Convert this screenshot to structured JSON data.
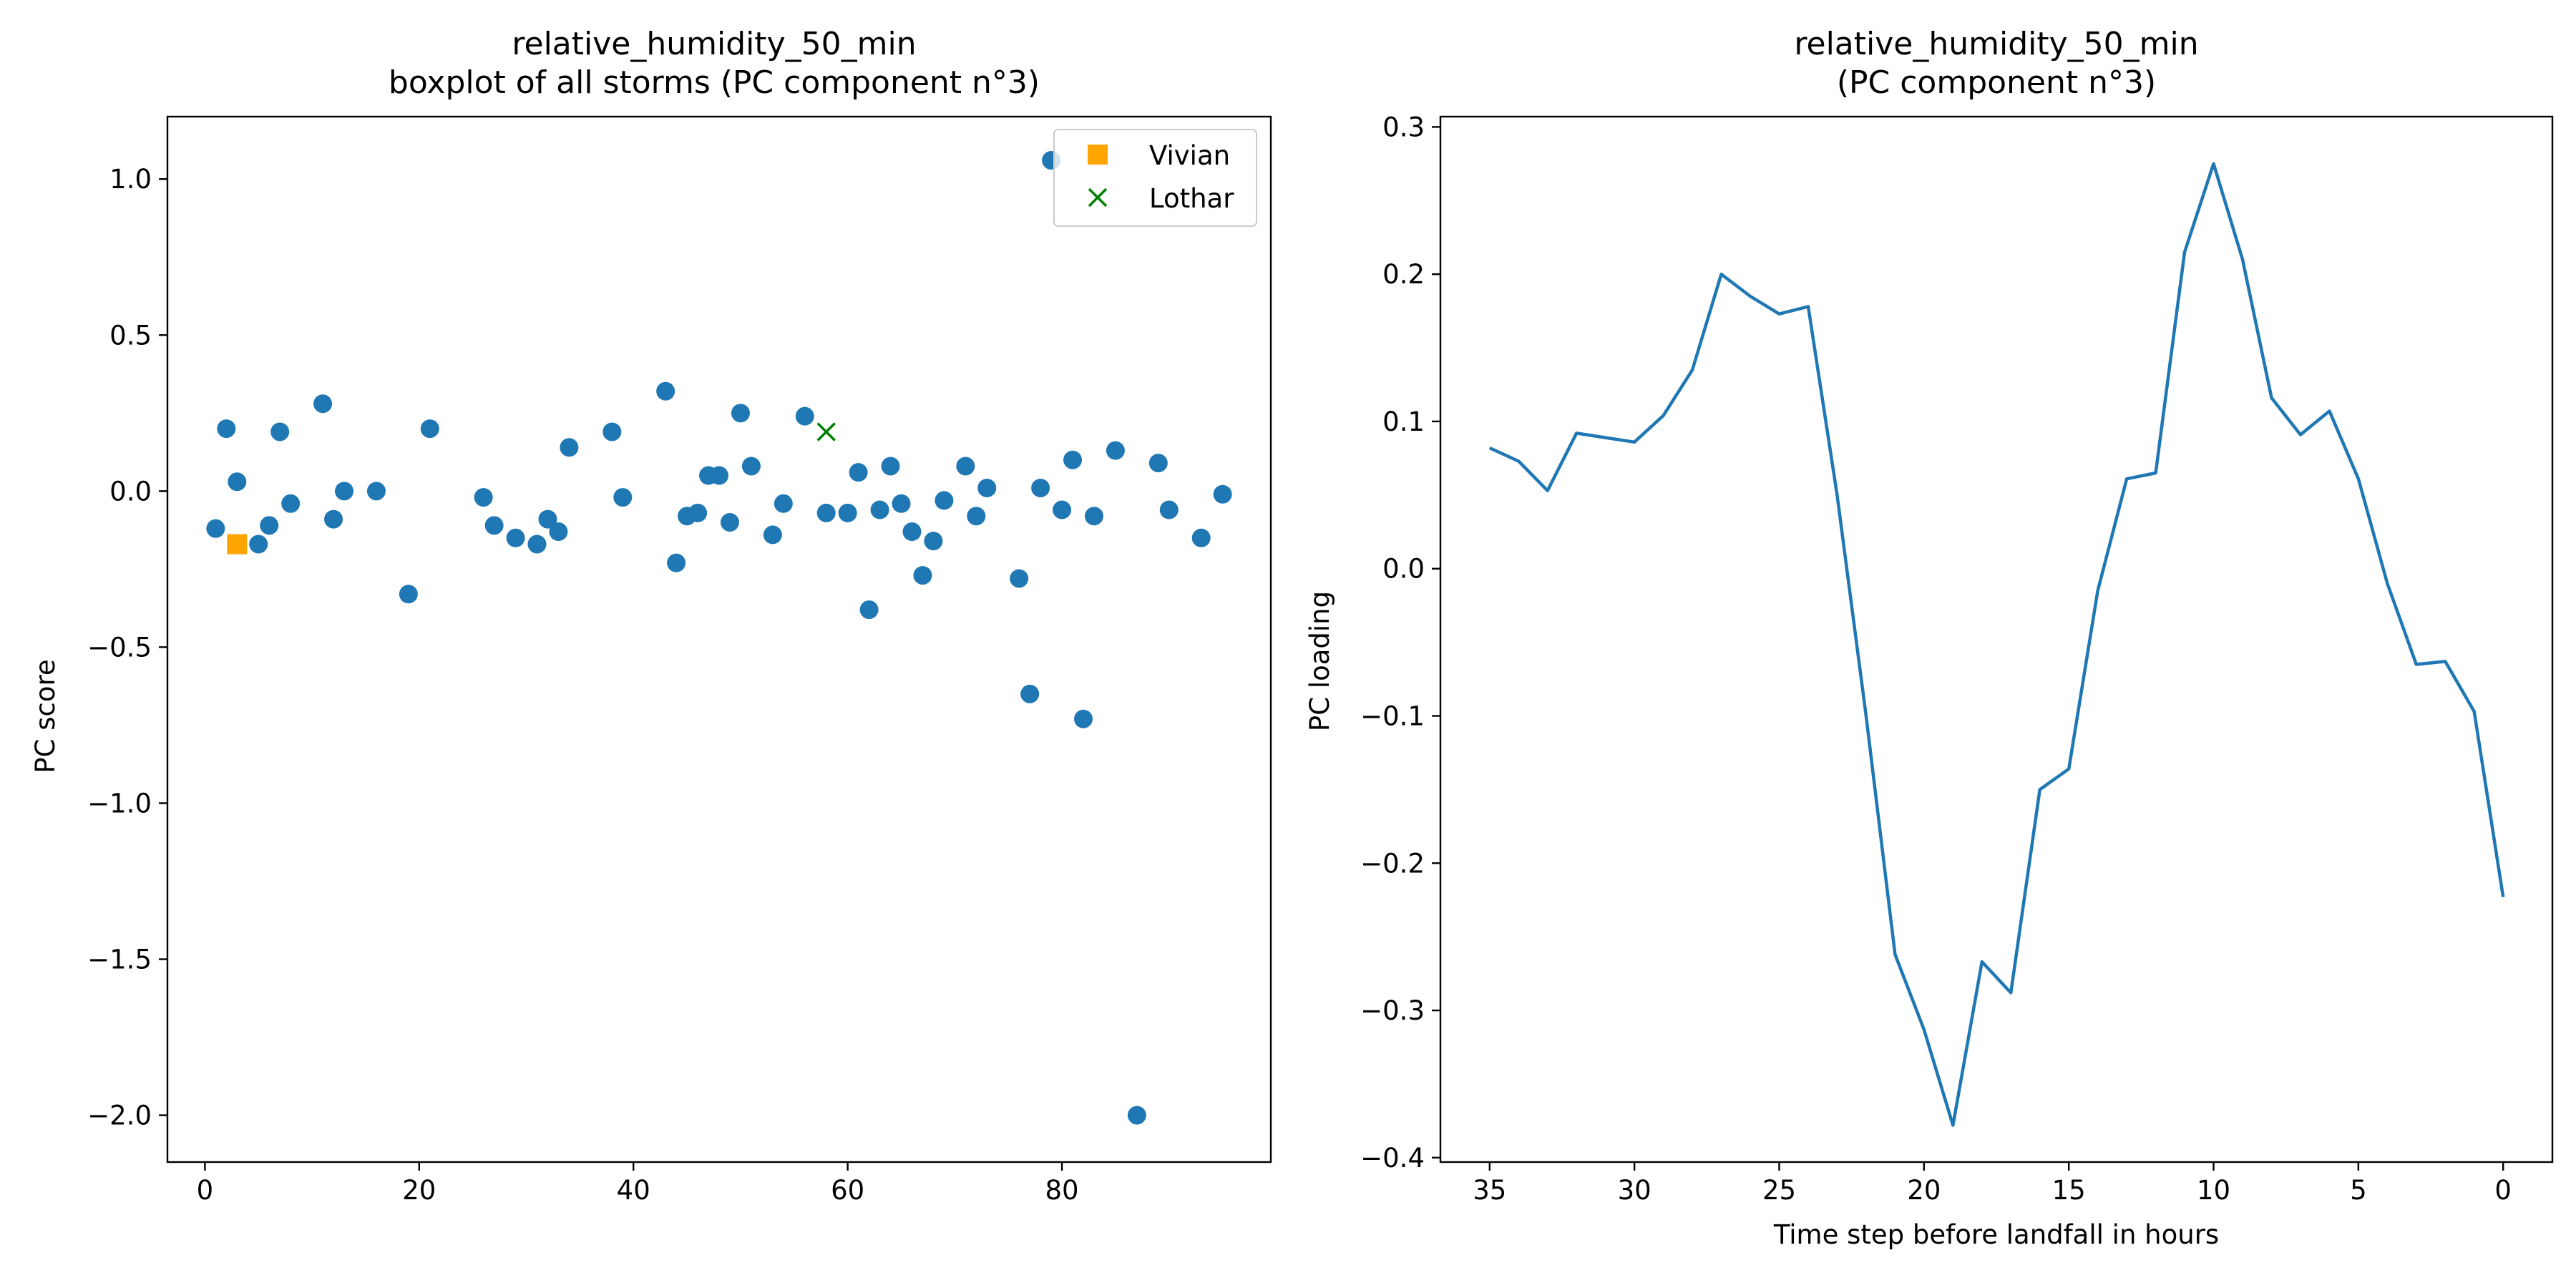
{
  "chart_data": [
    {
      "type": "scatter",
      "title": "relative_humidity_50_min\nboxplot of all storms (PC component n°3)",
      "xlabel": "",
      "ylabel": "PC score",
      "xlim": [
        -3.5,
        99.5
      ],
      "ylim": [
        -2.15,
        1.2
      ],
      "xticks": [
        0,
        20,
        40,
        60,
        80
      ],
      "yticks": [
        1.0,
        0.5,
        0.0,
        -0.5,
        -1.0,
        -1.5,
        -2.0
      ],
      "ytick_labels": [
        "1.0",
        "0.5",
        "0.0",
        "−0.5",
        "−1.0",
        "−1.5",
        "−2.0"
      ],
      "grid": false,
      "legend_position": "top-right",
      "colors": {
        "points": "#1f77b4",
        "vivian": "#ffa500",
        "lothar": "#008000"
      },
      "series": [
        {
          "marker": "circle",
          "x": [
            1,
            2,
            3,
            5,
            6,
            7,
            8,
            11,
            12,
            13,
            16,
            19,
            21,
            26,
            27,
            29,
            31,
            32,
            33,
            34,
            38,
            39,
            43,
            44,
            45,
            46,
            47,
            48,
            49,
            50,
            51,
            53,
            54,
            56,
            58,
            60,
            61,
            62,
            63,
            64,
            65,
            66,
            67,
            68,
            69,
            71,
            72,
            73,
            76,
            77,
            78,
            79,
            80,
            81,
            82,
            83,
            85,
            87,
            89,
            90,
            93,
            95
          ],
          "y": [
            -0.12,
            0.2,
            0.03,
            -0.17,
            -0.11,
            0.19,
            -0.04,
            0.28,
            -0.09,
            0.0,
            0.0,
            -0.33,
            0.2,
            -0.02,
            -0.11,
            -0.15,
            -0.17,
            -0.09,
            -0.13,
            0.14,
            0.19,
            -0.02,
            0.32,
            -0.23,
            -0.08,
            -0.07,
            0.05,
            0.05,
            -0.1,
            0.25,
            0.08,
            -0.14,
            -0.04,
            0.24,
            -0.07,
            -0.07,
            0.06,
            -0.38,
            -0.06,
            0.08,
            -0.04,
            -0.13,
            -0.27,
            -0.16,
            -0.03,
            0.08,
            -0.08,
            0.01,
            -0.28,
            -0.65,
            0.01,
            1.06,
            -0.06,
            0.1,
            -0.73,
            -0.08,
            0.13,
            -2.0,
            0.09,
            -0.06,
            -0.15,
            -0.01
          ]
        },
        {
          "name": "Vivian",
          "marker": "square",
          "x": [
            3
          ],
          "y": [
            -0.17
          ]
        },
        {
          "name": "Lothar",
          "marker": "x",
          "x": [
            58
          ],
          "y": [
            0.19
          ]
        }
      ]
    },
    {
      "type": "line",
      "title": "relative_humidity_50_min\n(PC component n°3)",
      "xlabel": "Time step before landfall in hours",
      "ylabel": "PC loading",
      "xlim": [
        36.7,
        -1.7
      ],
      "ylim": [
        -0.403,
        0.307
      ],
      "xticks": [
        35,
        30,
        25,
        20,
        15,
        10,
        5,
        0
      ],
      "yticks": [
        0.3,
        0.2,
        0.1,
        0.0,
        -0.1,
        -0.2,
        -0.3,
        -0.4
      ],
      "ytick_labels": [
        "0.3",
        "0.2",
        "0.1",
        "0.0",
        "−0.1",
        "−0.2",
        "−0.3",
        "−0.4"
      ],
      "grid": false,
      "colors": {
        "line": "#1f77b4"
      },
      "series": [
        {
          "x": [
            35,
            34,
            33,
            32,
            31,
            30,
            29,
            28,
            27,
            26,
            25,
            24,
            23,
            22,
            21,
            20,
            19,
            18,
            17,
            16,
            15,
            14,
            13,
            12,
            11,
            10,
            9,
            8,
            7,
            6,
            5,
            4,
            3,
            2,
            1,
            0
          ],
          "y": [
            0.082,
            0.073,
            0.053,
            0.092,
            0.089,
            0.086,
            0.104,
            0.135,
            0.2,
            0.185,
            0.173,
            0.178,
            0.05,
            -0.1,
            -0.262,
            -0.313,
            -0.378,
            -0.267,
            -0.288,
            -0.15,
            -0.136,
            -0.015,
            0.061,
            0.065,
            0.215,
            0.275,
            0.21,
            0.116,
            0.091,
            0.107,
            0.061,
            -0.01,
            -0.065,
            -0.063,
            -0.097,
            -0.223
          ]
        }
      ]
    }
  ]
}
